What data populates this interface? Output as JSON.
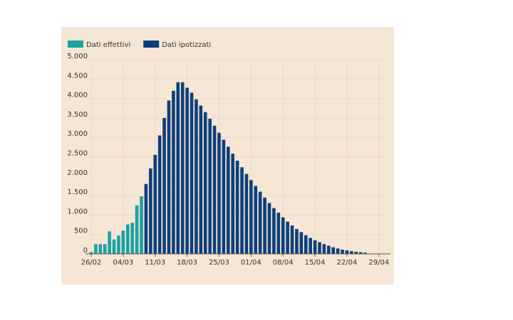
{
  "chart_data": {
    "type": "bar",
    "categories": [
      "26/02",
      null,
      null,
      null,
      null,
      null,
      null,
      "04/03",
      null,
      null,
      null,
      null,
      null,
      null,
      "11/03",
      null,
      null,
      null,
      null,
      null,
      null,
      "18/03",
      null,
      null,
      null,
      null,
      null,
      null,
      "25/03",
      null,
      null,
      null,
      null,
      null,
      null,
      "01/04",
      null,
      null,
      null,
      null,
      null,
      null,
      "08/04",
      null,
      null,
      null,
      null,
      null,
      null,
      "15/04",
      null,
      null,
      null,
      null,
      null,
      null,
      "22/04",
      null,
      null,
      null,
      null,
      null,
      null,
      "29/04"
    ],
    "series": [
      {
        "name": "Dati effettivi",
        "color": "#1aa3a3",
        "values": [
          50,
          250,
          250,
          250,
          580,
          370,
          470,
          600,
          760,
          800,
          1250,
          1480,
          null,
          null,
          null,
          null,
          null,
          null,
          null,
          null,
          null,
          null,
          null,
          null,
          null,
          null,
          null,
          null,
          null,
          null,
          null,
          null,
          null,
          null,
          null,
          null,
          null,
          null,
          null,
          null,
          null,
          null,
          null,
          null,
          null,
          null,
          null,
          null,
          null,
          null,
          null,
          null,
          null,
          null,
          null,
          null,
          null,
          null,
          null,
          null,
          null,
          null,
          null,
          null
        ]
      },
      {
        "name": "Dati ipotizzati",
        "color": "#0d3f7a",
        "values": [
          null,
          null,
          null,
          null,
          null,
          null,
          null,
          null,
          null,
          null,
          null,
          null,
          1800,
          2200,
          2550,
          3050,
          3500,
          3950,
          4200,
          4420,
          4420,
          4280,
          4150,
          3980,
          3820,
          3650,
          3480,
          3300,
          3120,
          2940,
          2760,
          2580,
          2400,
          2230,
          2060,
          1900,
          1750,
          1600,
          1450,
          1310,
          1180,
          1060,
          940,
          830,
          730,
          640,
          560,
          480,
          410,
          350,
          300,
          250,
          210,
          170,
          140,
          110,
          90,
          70,
          55,
          40,
          30,
          null,
          null,
          null
        ]
      }
    ],
    "ylim": [
      0,
      5000
    ],
    "yticks": [
      0,
      500,
      {
        "value": 1000,
        "label": "1.000"
      },
      {
        "value": 1500,
        "label": "1.500"
      },
      {
        "value": 2000,
        "label": "2.000"
      },
      {
        "value": 2500,
        "label": "2.500"
      },
      {
        "value": 3000,
        "label": "3.000"
      },
      {
        "value": 3500,
        "label": "3.500"
      },
      {
        "value": 4000,
        "label": "4.000"
      },
      {
        "value": 4500,
        "label": "4.500"
      },
      {
        "value": 5000,
        "label": "5.000"
      }
    ],
    "grid": true,
    "legend": "top-left"
  }
}
